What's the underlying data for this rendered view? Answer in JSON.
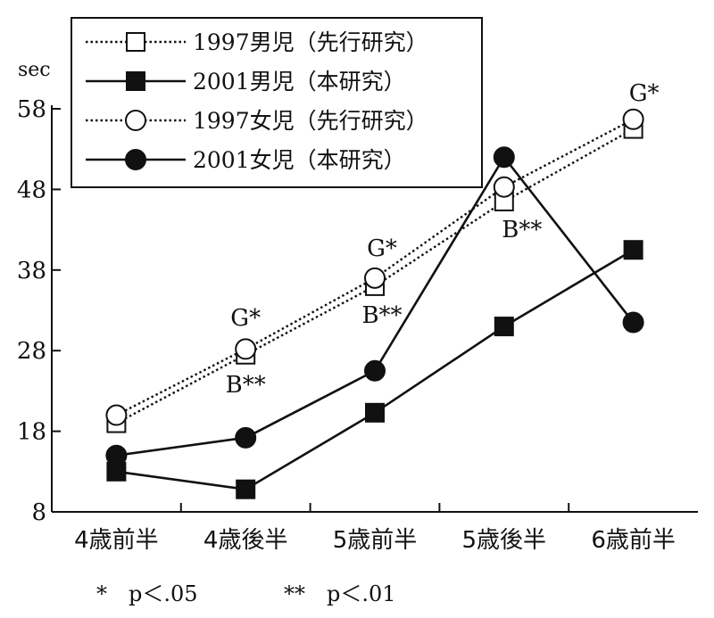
{
  "chart_data": {
    "type": "line",
    "ylabel": "sec",
    "ylim": [
      8,
      58
    ],
    "yticks": [
      8,
      18,
      28,
      38,
      48,
      58
    ],
    "categories": [
      "4歳前半",
      "4歳後半",
      "5歳前半",
      "5歳後半",
      "6歳前半"
    ],
    "series": [
      {
        "name": "1997男児（先行研究）",
        "values": [
          19,
          27.5,
          36,
          46.5,
          55.5
        ],
        "line": "dotted",
        "marker": "open-square"
      },
      {
        "name": "2001男児（本研究）",
        "values": [
          13,
          10.8,
          20.3,
          31,
          40.5
        ],
        "line": "solid",
        "marker": "filled-square"
      },
      {
        "name": "1997女児（先行研究）",
        "values": [
          20,
          28.2,
          37,
          48.3,
          56.7
        ],
        "line": "dotted",
        "marker": "open-circle"
      },
      {
        "name": "2001女児（本研究）",
        "values": [
          15,
          17.2,
          25.5,
          52,
          31.5
        ],
        "line": "solid",
        "marker": "filled-circle"
      }
    ],
    "annotations": [
      {
        "category": "4歳後半",
        "top": "G*",
        "bottom": "B**"
      },
      {
        "category": "5歳前半",
        "top": "G*",
        "bottom": "B**"
      },
      {
        "category": "5歳後半",
        "bottom": "B**"
      },
      {
        "category": "6歳前半",
        "top": "G*"
      }
    ],
    "footnote": [
      "*　p＜.05",
      "**　p＜.01"
    ],
    "legend": "top-left"
  }
}
